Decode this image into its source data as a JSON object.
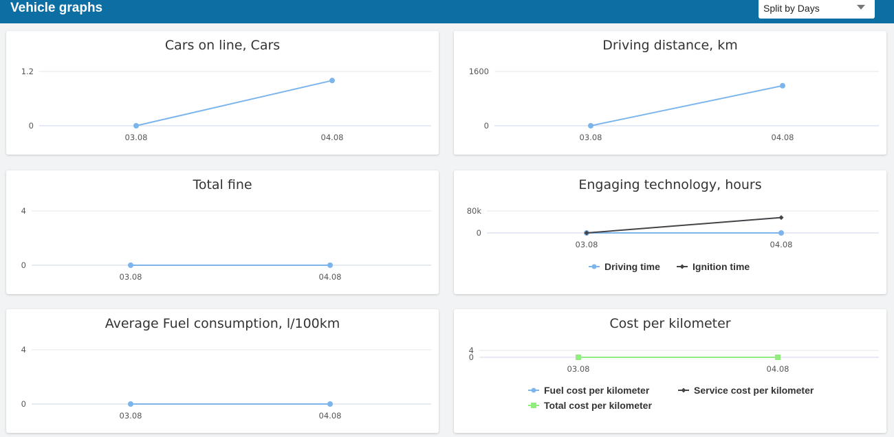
{
  "header": {
    "title": "Vehicle graphs"
  },
  "split_select": {
    "value": "Split by Days"
  },
  "colors": {
    "blue": "#7cb5ec",
    "dark": "#434348",
    "green": "#90ed7d"
  },
  "chart_data": [
    {
      "type": "line",
      "title": "Cars on line, Cars",
      "categories": [
        "03.08",
        "04.08"
      ],
      "yticks": [
        "0",
        "1.2"
      ],
      "ylim": [
        0,
        1.2
      ],
      "series": [
        {
          "values": [
            0,
            1
          ],
          "color": "#7cb5ec",
          "marker": "circle"
        }
      ],
      "legend": []
    },
    {
      "type": "line",
      "title": "Driving distance, km",
      "categories": [
        "03.08",
        "04.08"
      ],
      "yticks": [
        "0",
        "1600"
      ],
      "ylim": [
        0,
        1600
      ],
      "series": [
        {
          "values": [
            0,
            1180
          ],
          "color": "#7cb5ec",
          "marker": "circle"
        }
      ],
      "legend": []
    },
    {
      "type": "line",
      "title": "Total fine",
      "categories": [
        "03.08",
        "04.08"
      ],
      "yticks": [
        "0",
        "4"
      ],
      "ylim": [
        0,
        4
      ],
      "series": [
        {
          "values": [
            0,
            0
          ],
          "color": "#7cb5ec",
          "marker": "circle"
        }
      ],
      "legend": []
    },
    {
      "type": "line",
      "title": "Engaging technology, hours",
      "categories": [
        "03.08",
        "04.08"
      ],
      "yticks": [
        "0",
        "80k"
      ],
      "ylim": [
        0,
        80000
      ],
      "series": [
        {
          "name": "Driving time",
          "values": [
            0,
            0
          ],
          "color": "#7cb5ec",
          "marker": "circle"
        },
        {
          "name": "Ignition time",
          "values": [
            0,
            56000
          ],
          "color": "#434348",
          "marker": "diamond"
        }
      ],
      "legend": [
        {
          "label": "Driving time",
          "color": "#7cb5ec",
          "marker": "circle"
        },
        {
          "label": "Ignition time",
          "color": "#434348",
          "marker": "diamond"
        }
      ]
    },
    {
      "type": "line",
      "title": "Average Fuel consumption, l/100km",
      "categories": [
        "03.08",
        "04.08"
      ],
      "yticks": [
        "0",
        "4"
      ],
      "ylim": [
        0,
        4
      ],
      "series": [
        {
          "values": [
            0,
            0
          ],
          "color": "#7cb5ec",
          "marker": "circle"
        }
      ],
      "legend": []
    },
    {
      "type": "line",
      "title": "Cost per kilometer",
      "categories": [
        "03.08",
        "04.08"
      ],
      "yticks": [
        "0",
        "4"
      ],
      "ylim": [
        0,
        4
      ],
      "series": [
        {
          "name": "Fuel cost per kilometer",
          "values": [
            0,
            0
          ],
          "color": "#7cb5ec",
          "marker": "circle"
        },
        {
          "name": "Service cost per kilometer",
          "values": [
            0,
            0
          ],
          "color": "#434348",
          "marker": "diamond"
        },
        {
          "name": "Total cost per kilometer",
          "values": [
            0,
            0
          ],
          "color": "#90ed7d",
          "marker": "square"
        }
      ],
      "legend": [
        {
          "label": "Fuel cost per kilometer",
          "color": "#7cb5ec",
          "marker": "circle"
        },
        {
          "label": "Service cost per kilometer",
          "color": "#434348",
          "marker": "diamond"
        },
        {
          "label": "Total cost per kilometer",
          "color": "#90ed7d",
          "marker": "square"
        }
      ]
    }
  ]
}
